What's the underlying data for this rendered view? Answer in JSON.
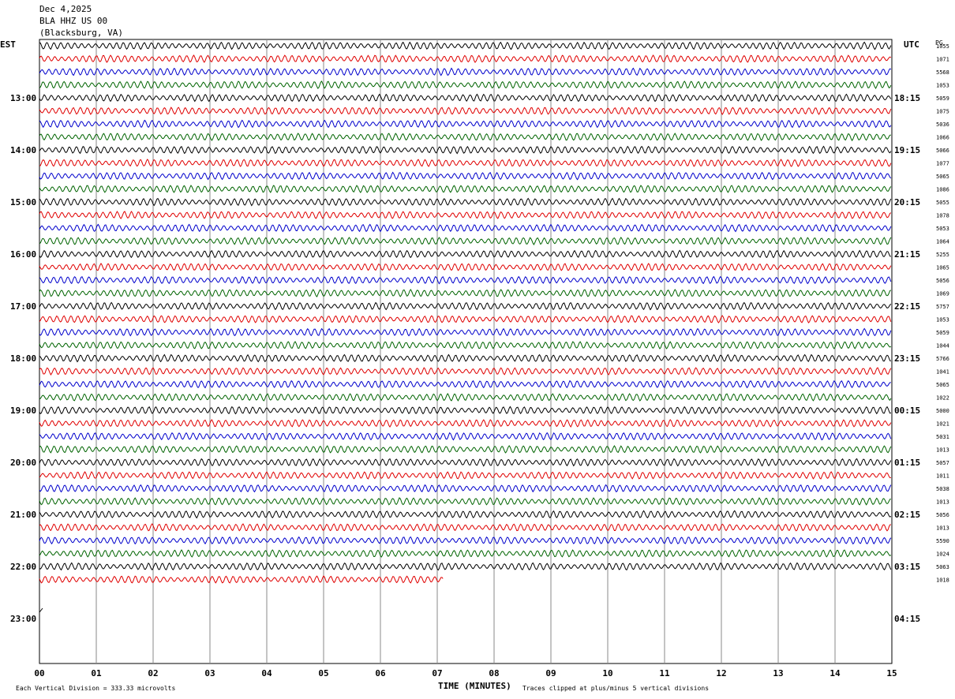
{
  "header": {
    "date": "Dec 4,2025",
    "station": "BLA HHZ US 00",
    "location": "(Blacksburg, VA)"
  },
  "labels": {
    "left_zone": "EST",
    "right_zone": "UTC",
    "pg": "PG"
  },
  "footer": {
    "vertical_division": "Each Vertical Division =  333.33 microvolts",
    "xlabel": "TIME (MINUTES)",
    "clipping": "Traces clipped at plus/minus 5 vertical divisions"
  },
  "colors": {
    "cycle": [
      "#000000",
      "#e00000",
      "#0000cc",
      "#006400"
    ],
    "grid": "#888888"
  },
  "chart_data": {
    "type": "line",
    "title": "Dec 4,2025 BLA HHZ US 00 (Blacksburg, VA)",
    "xlabel": "TIME (MINUTES)",
    "xlim": [
      0,
      15
    ],
    "x_ticks": [
      "00",
      "01",
      "02",
      "03",
      "04",
      "05",
      "06",
      "07",
      "08",
      "09",
      "10",
      "11",
      "12",
      "13",
      "14",
      "15"
    ],
    "left_hour_labels": [
      "13:00",
      "14:00",
      "15:00",
      "16:00",
      "17:00",
      "18:00",
      "19:00",
      "20:00",
      "21:00",
      "22:00",
      "23:00"
    ],
    "right_hour_labels": [
      "18:15",
      "19:15",
      "20:15",
      "21:15",
      "22:15",
      "23:15",
      "00:15",
      "01:15",
      "02:15",
      "03:15",
      "04:15"
    ],
    "traces_per_hour": 4,
    "trace_minutes": 15,
    "total_traces": 42,
    "last_trace_end_minute": 7.1,
    "trace_values": [
      1055,
      1071,
      5568,
      1053,
      5059,
      1075,
      5036,
      1066,
      5066,
      1077,
      5065,
      1086,
      5055,
      1078,
      5053,
      1064,
      5255,
      1065,
      5056,
      1069,
      5757,
      1053,
      5059,
      1044,
      5766,
      1041,
      5065,
      1022,
      5000,
      1021,
      5031,
      1013,
      5057,
      1011,
      5038,
      1013,
      5056,
      1013,
      5590,
      1024,
      5063,
      1018
    ],
    "vertical_division_microvolts": 333.33,
    "clip_divisions": 5
  }
}
